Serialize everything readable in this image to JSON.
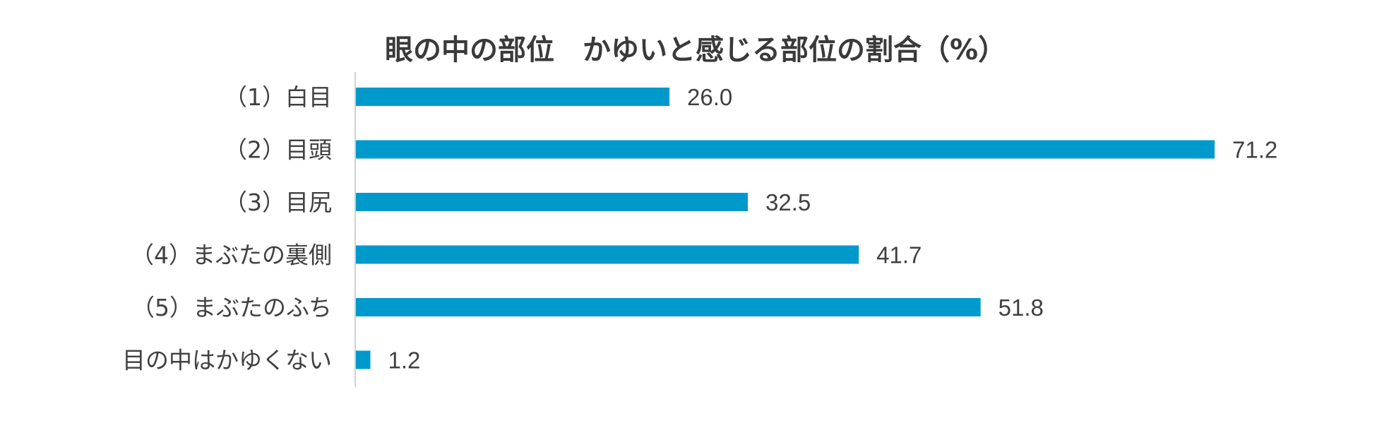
{
  "chart_data": {
    "type": "bar",
    "orientation": "horizontal",
    "title": "眼の中の部位　かゆいと感じる部位の割合（%）",
    "categories": [
      "（1）白目",
      "（2）目頭",
      "（3）目尻",
      "（4）まぶたの裏側",
      "（5）まぶたのふち",
      "目の中はかゆくない"
    ],
    "values": [
      26.0,
      71.2,
      32.5,
      41.7,
      51.8,
      1.2
    ],
    "value_labels": [
      "26.0",
      "71.2",
      "32.5",
      "41.7",
      "51.8",
      "1.2"
    ],
    "xlabel": "",
    "ylabel": "",
    "xlim": [
      0,
      71.2
    ],
    "grid": false,
    "legend": "none",
    "bar_color": "#0099cc",
    "axis_color": "#d0d0d0"
  }
}
